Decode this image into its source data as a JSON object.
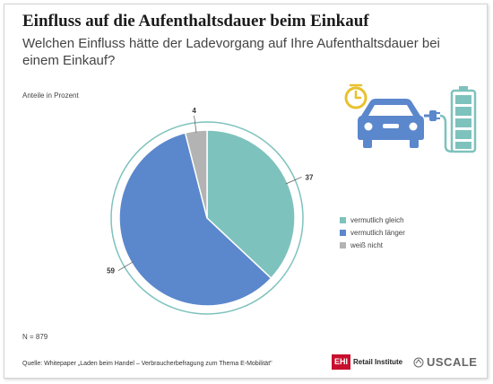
{
  "header": {
    "title": "Einfluss auf die Aufenthaltsdauer beim Einkauf",
    "subtitle": "Welchen Einfluss hätte der Ladevorgang auf Ihre Aufenthaltsdauer bei einem Einkauf?"
  },
  "chart_data": {
    "type": "pie",
    "unit_label": "Anteile in Prozent",
    "slices": [
      {
        "label": "vermutlich gleich",
        "value": 37,
        "color": "#7ec2bd"
      },
      {
        "label": "vermutlich länger",
        "value": 59,
        "color": "#5b87cc"
      },
      {
        "label": "weiß nicht",
        "value": 4,
        "color": "#b3b3b3"
      }
    ],
    "outer_ring_color": "#7ec2bd",
    "legend_position": "right"
  },
  "footer": {
    "sample_size": "N = 879",
    "source": "Quelle: Whitepaper „Laden beim Handel – Verbraucherbefragung zum Thema E-Mobilität\"",
    "logo_ehi_box": "EHI",
    "logo_ehi_text": "Retail Institute",
    "logo_uscale": "USCALE"
  },
  "illustration": {
    "icons": [
      "clock-icon",
      "car-icon",
      "charging-plug-icon",
      "battery-icon"
    ],
    "colors": {
      "car": "#5b87cc",
      "battery": "#7ec2bd",
      "clock": "#e8c12e"
    }
  }
}
